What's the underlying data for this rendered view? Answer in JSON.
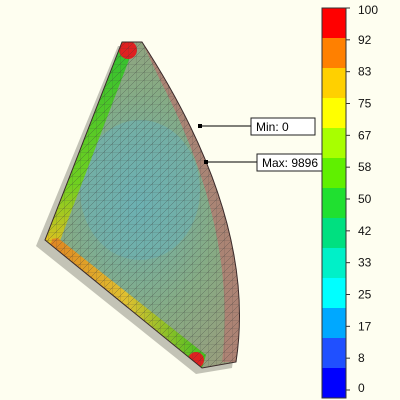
{
  "legend": {
    "ticks": [
      "100",
      "92",
      "83",
      "75",
      "67",
      "58",
      "50",
      "42",
      "33",
      "25",
      "17",
      "8",
      "0"
    ],
    "colors": [
      "#ff0000",
      "#ff8000",
      "#ffd000",
      "#ffff00",
      "#a8ff00",
      "#60f000",
      "#20e030",
      "#00e080",
      "#00f0c8",
      "#00ffff",
      "#00a8ff",
      "#2050ff",
      "#0000ff"
    ]
  },
  "annotations": {
    "min_label": "Min: 0",
    "max_label": "Max: 9896"
  },
  "mesh_colors": {
    "body": "#8aaa7c",
    "center": "#70b0a8",
    "arc_edge": "#b07870",
    "edge_strip": [
      "#20c020",
      "#70e020",
      "#e0e020",
      "#ff8000"
    ],
    "corner": "#e02020"
  }
}
